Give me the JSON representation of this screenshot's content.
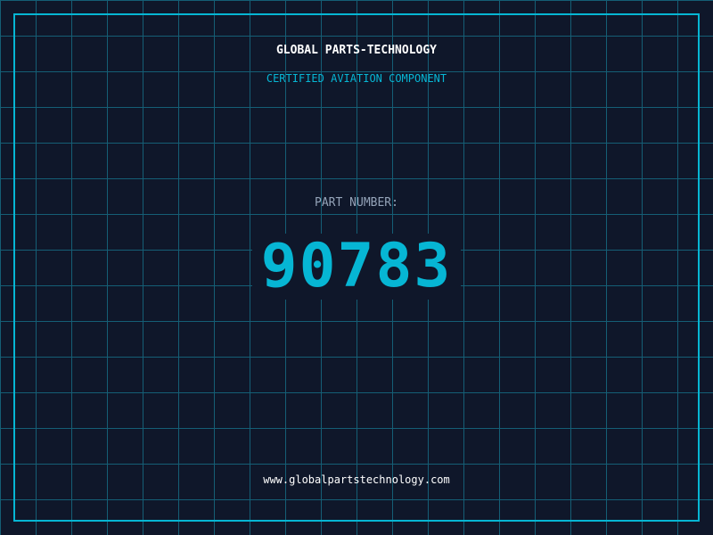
{
  "header": {
    "title": "GLOBAL PARTS-TECHNOLOGY",
    "subtitle": "CERTIFIED AVIATION COMPONENT"
  },
  "part": {
    "label": "PART NUMBER:",
    "number": "90783"
  },
  "footer": {
    "url": "www.globalpartstechnology.com"
  },
  "colors": {
    "background": "#0f172a",
    "grid": "#155e75",
    "accent": "#06b6d4"
  }
}
